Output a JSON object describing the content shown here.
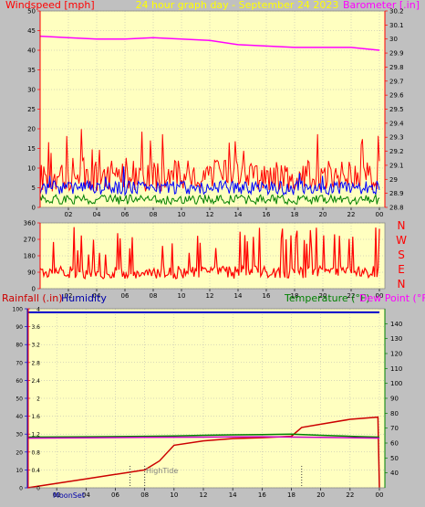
{
  "header": {
    "left_title": "Windspeed [mph]",
    "center_title": "24 hour graph day  - September 24 2023",
    "right_title": "Barometer [.in]"
  },
  "colors": {
    "background": "#c0c0c0",
    "plot_bg": "#ffffc0",
    "axis_red": "#ff0000",
    "windspeed": "#ff0000",
    "windavg": "#0000ff",
    "windmin": "#008000",
    "barometer": "#ff00ff",
    "winddir": "#ff0000",
    "rainfall": "#cc0000",
    "humidity": "#0000cc",
    "temperature": "#008000",
    "dewpoint": "#cc00cc",
    "title_yellow": "#ffff00",
    "green_label": "#008000",
    "magenta_label": "#ff00ff",
    "blue_label": "#0000aa",
    "red_label": "#cc0000"
  },
  "chart_data": [
    {
      "type": "line",
      "id": "wind_baro",
      "title": "24 hour graph day  - September 24 2023",
      "ylabel": "Windspeed [mph]",
      "y2label": "Barometer [.in]",
      "x_ticks": [
        "02",
        "04",
        "06",
        "08",
        "10",
        "12",
        "14",
        "16",
        "18",
        "20",
        "22",
        "00"
      ],
      "ylim": [
        0,
        50
      ],
      "y_ticks": [
        "0",
        "5",
        "10",
        "15",
        "20",
        "25",
        "30",
        "35",
        "40",
        "45",
        "50"
      ],
      "y2lim": [
        28.8,
        30.2
      ],
      "y2_ticks": [
        "28.8",
        "28.9",
        "29",
        "29.1",
        "29.2",
        "29.3",
        "29.4",
        "29.5",
        "29.6",
        "29.7",
        "29.8",
        "29.9",
        "30",
        "30.1",
        "30.2"
      ],
      "series": [
        {
          "name": "windspeed_gust",
          "axis": "left",
          "approx_level": 8,
          "approx_peak": 21
        },
        {
          "name": "windspeed_avg",
          "axis": "left",
          "approx_level": 5
        },
        {
          "name": "windspeed_min",
          "axis": "left",
          "approx_level": 2
        },
        {
          "name": "barometer",
          "axis": "right",
          "x": [
            0,
            2,
            4,
            6,
            8,
            10,
            12,
            14,
            16,
            18,
            20,
            22,
            24
          ],
          "values": [
            30.02,
            30.01,
            30.0,
            30.0,
            30.01,
            30.0,
            29.99,
            29.96,
            29.95,
            29.94,
            29.94,
            29.94,
            29.92
          ]
        }
      ]
    },
    {
      "type": "line",
      "id": "wind_dir",
      "ylim": [
        0,
        360
      ],
      "y_ticks": [
        "0",
        "90",
        "180",
        "270",
        "360"
      ],
      "right_labels": [
        "N",
        "W",
        "S",
        "E",
        "N"
      ],
      "x_ticks": [
        "02",
        "04",
        "06",
        "08",
        "10",
        "12",
        "14",
        "16",
        "18",
        "20",
        "22",
        "00"
      ],
      "series": [
        {
          "name": "wind_direction",
          "approx_level": 90,
          "approx_range": [
            30,
            340
          ]
        }
      ]
    },
    {
      "type": "line",
      "id": "rain_hum_temp",
      "legend_left": [
        "Rainfall (.in)",
        "Humidity"
      ],
      "legend_right": [
        "Temperature (°F)",
        "Dew Point (°F)"
      ],
      "ylim": [
        0,
        4
      ],
      "y_ticks": [
        "0",
        "0.4",
        "0.8",
        "1.2",
        "1.6",
        "2",
        "2.4",
        "2.8",
        "3.2",
        "3.6",
        "4"
      ],
      "y2lim": [
        0,
        100
      ],
      "y2_ticks": [
        "0",
        "10",
        "20",
        "30",
        "40",
        "50",
        "60",
        "70",
        "80",
        "90",
        "100"
      ],
      "y3lim": [
        30,
        150
      ],
      "y3_ticks": [
        "40",
        "50",
        "60",
        "70",
        "80",
        "90",
        "100",
        "110",
        "120",
        "130",
        "140"
      ],
      "x_ticks": [
        "02",
        "04",
        "06",
        "08",
        "10",
        "12",
        "14",
        "16",
        "18",
        "20",
        "22",
        "00"
      ],
      "annotations": [
        "MoonSet",
        "HighTide"
      ],
      "series": [
        {
          "name": "Rainfall",
          "axis": "left",
          "x": [
            0,
            2,
            4,
            6,
            7,
            8,
            9,
            10,
            12,
            14,
            16,
            18,
            18.7,
            20,
            22,
            23.9,
            24
          ],
          "values": [
            0.0,
            0.1,
            0.2,
            0.3,
            0.35,
            0.4,
            0.6,
            0.95,
            1.05,
            1.1,
            1.12,
            1.15,
            1.35,
            1.42,
            1.53,
            1.58,
            0.0
          ]
        },
        {
          "name": "Humidity",
          "axis": "right_outer",
          "x": [
            0,
            6,
            12,
            18,
            24
          ],
          "values": [
            98,
            98,
            98,
            98,
            98
          ]
        },
        {
          "name": "Temperature",
          "axis": "right_inner",
          "x": [
            0,
            4,
            8,
            10,
            12,
            14,
            16,
            18,
            20,
            22,
            24
          ],
          "values": [
            64.0,
            64.2,
            64.5,
            64.8,
            65.2,
            65.5,
            65.7,
            66.0,
            65.2,
            64.5,
            64.0
          ]
        },
        {
          "name": "Dew Point",
          "axis": "right_inner",
          "x": [
            0,
            4,
            8,
            12,
            16,
            20,
            24
          ],
          "values": [
            63.3,
            63.5,
            63.8,
            64.0,
            64.2,
            63.8,
            63.3
          ]
        }
      ]
    }
  ]
}
